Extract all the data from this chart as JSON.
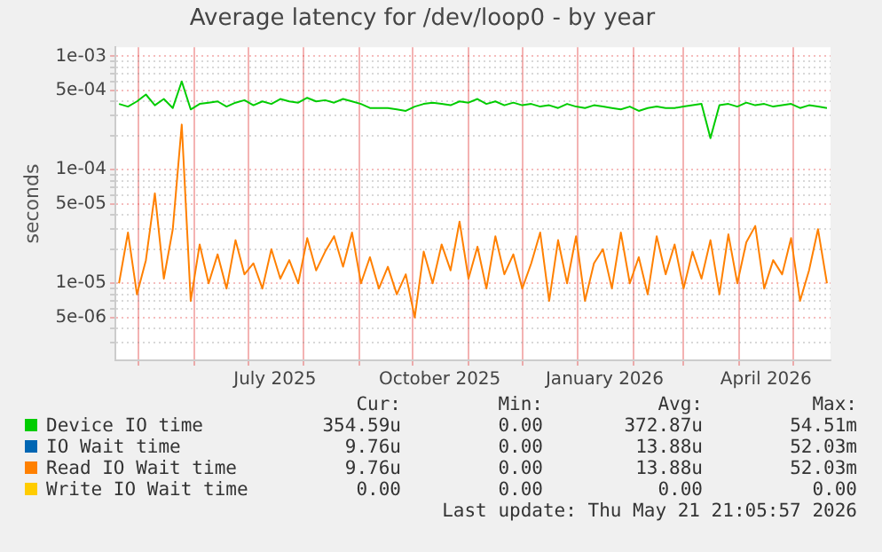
{
  "chart_data": {
    "type": "line",
    "title": "Average latency for /dev/loop0 - by year",
    "ylabel": "seconds",
    "log": "y",
    "grid": true,
    "legend": "bottom",
    "marker": "none",
    "line_style": "solid",
    "x": [
      "2025-04-20",
      "2025-04-25",
      "2025-04-30",
      "2025-05-05",
      "2025-05-10",
      "2025-05-15",
      "2025-05-20",
      "2025-05-25",
      "2025-05-30",
      "2025-06-04",
      "2025-06-09",
      "2025-06-14",
      "2025-06-19",
      "2025-06-24",
      "2025-06-29",
      "2025-07-04",
      "2025-07-09",
      "2025-07-14",
      "2025-07-19",
      "2025-07-24",
      "2025-07-29",
      "2025-08-03",
      "2025-08-08",
      "2025-08-13",
      "2025-08-18",
      "2025-08-23",
      "2025-08-28",
      "2025-09-02",
      "2025-09-07",
      "2025-09-12",
      "2025-09-17",
      "2025-09-22",
      "2025-09-27",
      "2025-10-02",
      "2025-10-07",
      "2025-10-12",
      "2025-10-17",
      "2025-10-22",
      "2025-10-27",
      "2025-11-01",
      "2025-11-06",
      "2025-11-11",
      "2025-11-16",
      "2025-11-21",
      "2025-11-26",
      "2025-12-01",
      "2025-12-06",
      "2025-12-11",
      "2025-12-16",
      "2025-12-21",
      "2025-12-26",
      "2025-12-31",
      "2026-01-05",
      "2026-01-10",
      "2026-01-15",
      "2026-01-20",
      "2026-01-25",
      "2026-01-30",
      "2026-02-04",
      "2026-02-09",
      "2026-02-14",
      "2026-02-19",
      "2026-02-24",
      "2026-03-01",
      "2026-03-06",
      "2026-03-11",
      "2026-03-16",
      "2026-03-21",
      "2026-03-26",
      "2026-03-31",
      "2026-04-05",
      "2026-04-10",
      "2026-04-15",
      "2026-04-20",
      "2026-04-25",
      "2026-04-30",
      "2026-05-05",
      "2026-05-10",
      "2026-05-15",
      "2026-05-20"
    ],
    "xlim": [
      "2025-04-18",
      "2026-05-22"
    ],
    "xticks": [
      {
        "value": "2025-05-01",
        "label": null
      },
      {
        "value": "2025-06-01",
        "label": null
      },
      {
        "value": "2025-07-01",
        "label": null
      },
      {
        "value": "2025-07-16",
        "label": "July 2025"
      },
      {
        "value": "2025-08-01",
        "label": null
      },
      {
        "value": "2025-09-01",
        "label": null
      },
      {
        "value": "2025-10-01",
        "label": null
      },
      {
        "value": "2025-10-16",
        "label": "October 2025"
      },
      {
        "value": "2025-11-01",
        "label": null
      },
      {
        "value": "2025-12-01",
        "label": null
      },
      {
        "value": "2026-01-01",
        "label": null
      },
      {
        "value": "2026-01-16",
        "label": "January 2026"
      },
      {
        "value": "2026-02-01",
        "label": null
      },
      {
        "value": "2026-03-01",
        "label": null
      },
      {
        "value": "2026-04-01",
        "label": null
      },
      {
        "value": "2026-04-16",
        "label": "April 2026"
      },
      {
        "value": "2026-05-01",
        "label": null
      }
    ],
    "ylim": [
      2.1e-06,
      0.0012
    ],
    "yticks": [
      {
        "value": 3e-06,
        "label": null
      },
      {
        "value": 4e-06,
        "label": null
      },
      {
        "value": 5e-06,
        "label": "5e-06"
      },
      {
        "value": 6e-06,
        "label": null
      },
      {
        "value": 7e-06,
        "label": null
      },
      {
        "value": 8e-06,
        "label": null
      },
      {
        "value": 9e-06,
        "label": null
      },
      {
        "value": 1e-05,
        "label": "1e-05"
      },
      {
        "value": 2e-05,
        "label": null
      },
      {
        "value": 3e-05,
        "label": null
      },
      {
        "value": 4e-05,
        "label": null
      },
      {
        "value": 5e-05,
        "label": "5e-05"
      },
      {
        "value": 6e-05,
        "label": null
      },
      {
        "value": 7e-05,
        "label": null
      },
      {
        "value": 8e-05,
        "label": null
      },
      {
        "value": 9e-05,
        "label": null
      },
      {
        "value": 0.0001,
        "label": "1e-04"
      },
      {
        "value": 0.0002,
        "label": null
      },
      {
        "value": 0.0003,
        "label": null
      },
      {
        "value": 0.0004,
        "label": null
      },
      {
        "value": 0.0005,
        "label": "5e-04"
      },
      {
        "value": 0.0006,
        "label": null
      },
      {
        "value": 0.0007,
        "label": null
      },
      {
        "value": 0.0008,
        "label": null
      },
      {
        "value": 0.0009,
        "label": null
      },
      {
        "value": 0.001,
        "label": "1e-03"
      }
    ],
    "series": [
      {
        "name": "Device IO time",
        "color": "#00cc00",
        "values": [
          0.00038,
          0.00036,
          0.0004,
          0.00046,
          0.00037,
          0.00042,
          0.00035,
          0.0006,
          0.00034,
          0.00038,
          0.00039,
          0.0004,
          0.00036,
          0.00039,
          0.00041,
          0.00037,
          0.0004,
          0.00038,
          0.00042,
          0.0004,
          0.00039,
          0.00043,
          0.0004,
          0.00041,
          0.00039,
          0.00042,
          0.0004,
          0.00038,
          0.00035,
          0.00035,
          0.00035,
          0.00034,
          0.00033,
          0.00036,
          0.00038,
          0.00039,
          0.00038,
          0.00037,
          0.0004,
          0.00039,
          0.00042,
          0.00038,
          0.0004,
          0.00037,
          0.00039,
          0.00037,
          0.00038,
          0.00036,
          0.00037,
          0.00035,
          0.00038,
          0.00036,
          0.00035,
          0.00037,
          0.00036,
          0.00035,
          0.00034,
          0.00036,
          0.00033,
          0.00035,
          0.00036,
          0.00035,
          0.00035,
          0.00036,
          0.00037,
          0.00038,
          0.00019,
          0.00037,
          0.00038,
          0.00036,
          0.00039,
          0.00037,
          0.00038,
          0.00036,
          0.00037,
          0.00038,
          0.00035,
          0.00037,
          0.00036,
          0.00035
        ]
      },
      {
        "name": "IO Wait time",
        "color": "#0066b3",
        "values": [
          null,
          null,
          null,
          null,
          null,
          null,
          null,
          null,
          null,
          null,
          null,
          null,
          null,
          null,
          null,
          null,
          null,
          null,
          null,
          null,
          null,
          null,
          null,
          null,
          null,
          null,
          null,
          null,
          null,
          null,
          null,
          null,
          null,
          null,
          null,
          null,
          null,
          null,
          null,
          null,
          null,
          null,
          null,
          null,
          null,
          null,
          null,
          null,
          null,
          null,
          null,
          null,
          null,
          null,
          null,
          null,
          null,
          null,
          null,
          null,
          null,
          null,
          null,
          null,
          null,
          null,
          null,
          null,
          null,
          null,
          null,
          null,
          null,
          null,
          null,
          null,
          null,
          null,
          null,
          null
        ]
      },
      {
        "name": "Read IO Wait time",
        "color": "#ff8000",
        "values": [
          1e-05,
          2.8e-05,
          8e-06,
          1.6e-05,
          6.2e-05,
          1.1e-05,
          3e-05,
          0.00025,
          7e-06,
          2.2e-05,
          1e-05,
          1.8e-05,
          9e-06,
          2.4e-05,
          1.2e-05,
          1.5e-05,
          9e-06,
          2e-05,
          1.1e-05,
          1.6e-05,
          1e-05,
          2.5e-05,
          1.3e-05,
          1.9e-05,
          2.6e-05,
          1.4e-05,
          2.8e-05,
          1e-05,
          1.7e-05,
          9e-06,
          1.4e-05,
          8e-06,
          1.2e-05,
          5e-06,
          1.9e-05,
          1e-05,
          2.2e-05,
          1.3e-05,
          3.5e-05,
          1.1e-05,
          2.1e-05,
          9e-06,
          2.6e-05,
          1.2e-05,
          1.8e-05,
          9e-06,
          1.5e-05,
          2.8e-05,
          7e-06,
          2.4e-05,
          1e-05,
          2.6e-05,
          7e-06,
          1.5e-05,
          2e-05,
          9e-06,
          2.8e-05,
          1e-05,
          1.7e-05,
          8e-06,
          2.6e-05,
          1.2e-05,
          2.2e-05,
          9e-06,
          1.9e-05,
          1.1e-05,
          2.4e-05,
          8e-06,
          2.7e-05,
          1e-05,
          2.3e-05,
          3.2e-05,
          9e-06,
          1.6e-05,
          1.2e-05,
          2.5e-05,
          7e-06,
          1.3e-05,
          3e-05,
          1e-05
        ]
      },
      {
        "name": "Write IO Wait time",
        "color": "#ffcc00",
        "values": [
          null,
          null,
          null,
          null,
          null,
          null,
          null,
          null,
          null,
          null,
          null,
          null,
          null,
          null,
          null,
          null,
          null,
          null,
          null,
          null,
          null,
          null,
          null,
          null,
          null,
          null,
          null,
          null,
          null,
          null,
          null,
          null,
          null,
          null,
          null,
          null,
          null,
          null,
          null,
          null,
          null,
          null,
          null,
          null,
          null,
          null,
          null,
          null,
          null,
          null,
          null,
          null,
          null,
          null,
          null,
          null,
          null,
          null,
          null,
          null,
          null,
          null,
          null,
          null,
          null,
          null,
          null,
          null,
          null,
          null,
          null,
          null,
          null,
          null,
          null,
          null,
          null,
          null,
          null,
          null
        ]
      }
    ],
    "annotations": [
      "Cur:",
      "Min:",
      "Avg:",
      "Max:",
      "354.59u",
      "0.00",
      "372.87u",
      "54.51m",
      "9.76u",
      "0.00",
      "13.88u",
      "52.03m",
      "9.76u",
      "0.00",
      "13.88u",
      "52.03m",
      "0.00",
      "0.00",
      "0.00",
      "0.00",
      "Last update: Thu May 21 21:05:57 2026"
    ]
  }
}
